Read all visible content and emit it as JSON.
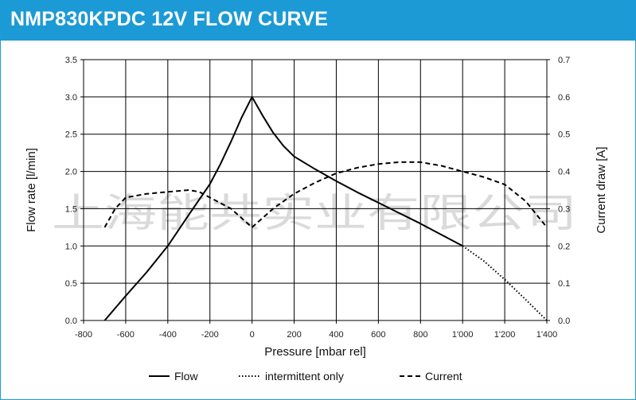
{
  "title": "NMP830KPDC 12V FLOW CURVE",
  "watermark": "上海能共实业有限公司",
  "colors": {
    "header": "#1c9ad6",
    "grid": "#000000",
    "line": "#000000"
  },
  "chart_data": {
    "type": "line",
    "title": "NMP830KPDC 12V FLOW CURVE",
    "xlabel": "Pressure [mbar rel]",
    "ylabel": "Flow rate [l/min]",
    "y2label": "Current draw [A]",
    "xlim": [
      -800,
      1400
    ],
    "ylim": [
      0,
      3.5
    ],
    "y2lim": [
      0,
      0.7
    ],
    "grid": true,
    "x_ticks": [
      -800,
      -600,
      -400,
      -200,
      0,
      200,
      400,
      600,
      800,
      1000,
      1200,
      1400
    ],
    "x_tick_labels": [
      "-800",
      "-600",
      "-400",
      "-200",
      "0",
      "200",
      "400",
      "600",
      "800",
      "1'000",
      "1'200",
      "1'400"
    ],
    "y_ticks": [
      0,
      0.5,
      1,
      1.5,
      2,
      2.5,
      3,
      3.5
    ],
    "y_tick_labels": [
      "0.0",
      "0.5",
      "1.0",
      "1.5",
      "2.0",
      "2.5",
      "3.0",
      "3.5"
    ],
    "y2_ticks": [
      0,
      0.1,
      0.2,
      0.3,
      0.4,
      0.5,
      0.6,
      0.7
    ],
    "y2_tick_labels": [
      "0.0",
      "0.1",
      "0.2",
      "0.3",
      "0.4",
      "0.5",
      "0.6",
      "0.7"
    ],
    "legend_position": "bottom",
    "series": [
      {
        "name": "Flow",
        "axis": "left",
        "style": "solid",
        "x": [
          -700,
          -600,
          -500,
          -400,
          -300,
          -200,
          -150,
          -100,
          -50,
          0,
          50,
          100,
          150,
          200,
          300,
          400,
          500,
          600,
          700,
          800,
          900,
          1000
        ],
        "y": [
          0.0,
          0.33,
          0.65,
          1.0,
          1.42,
          1.83,
          2.1,
          2.4,
          2.72,
          3.0,
          2.75,
          2.52,
          2.34,
          2.2,
          2.03,
          1.87,
          1.72,
          1.58,
          1.44,
          1.3,
          1.15,
          1.0
        ]
      },
      {
        "name": "intermittent only",
        "axis": "left",
        "style": "dotted",
        "x": [
          1000,
          1100,
          1200,
          1300,
          1400
        ],
        "y": [
          1.0,
          0.8,
          0.55,
          0.28,
          0.0
        ]
      },
      {
        "name": "Current",
        "axis": "right",
        "style": "dashed",
        "x": [
          -700,
          -650,
          -600,
          -500,
          -400,
          -300,
          -250,
          -200,
          -100,
          0,
          100,
          200,
          300,
          400,
          500,
          600,
          700,
          800,
          900,
          1000,
          1100,
          1200,
          1300,
          1400
        ],
        "y": [
          0.25,
          0.3,
          0.33,
          0.34,
          0.345,
          0.35,
          0.345,
          0.33,
          0.3,
          0.25,
          0.3,
          0.34,
          0.37,
          0.395,
          0.41,
          0.42,
          0.425,
          0.425,
          0.415,
          0.4,
          0.385,
          0.365,
          0.32,
          0.25
        ]
      }
    ]
  }
}
